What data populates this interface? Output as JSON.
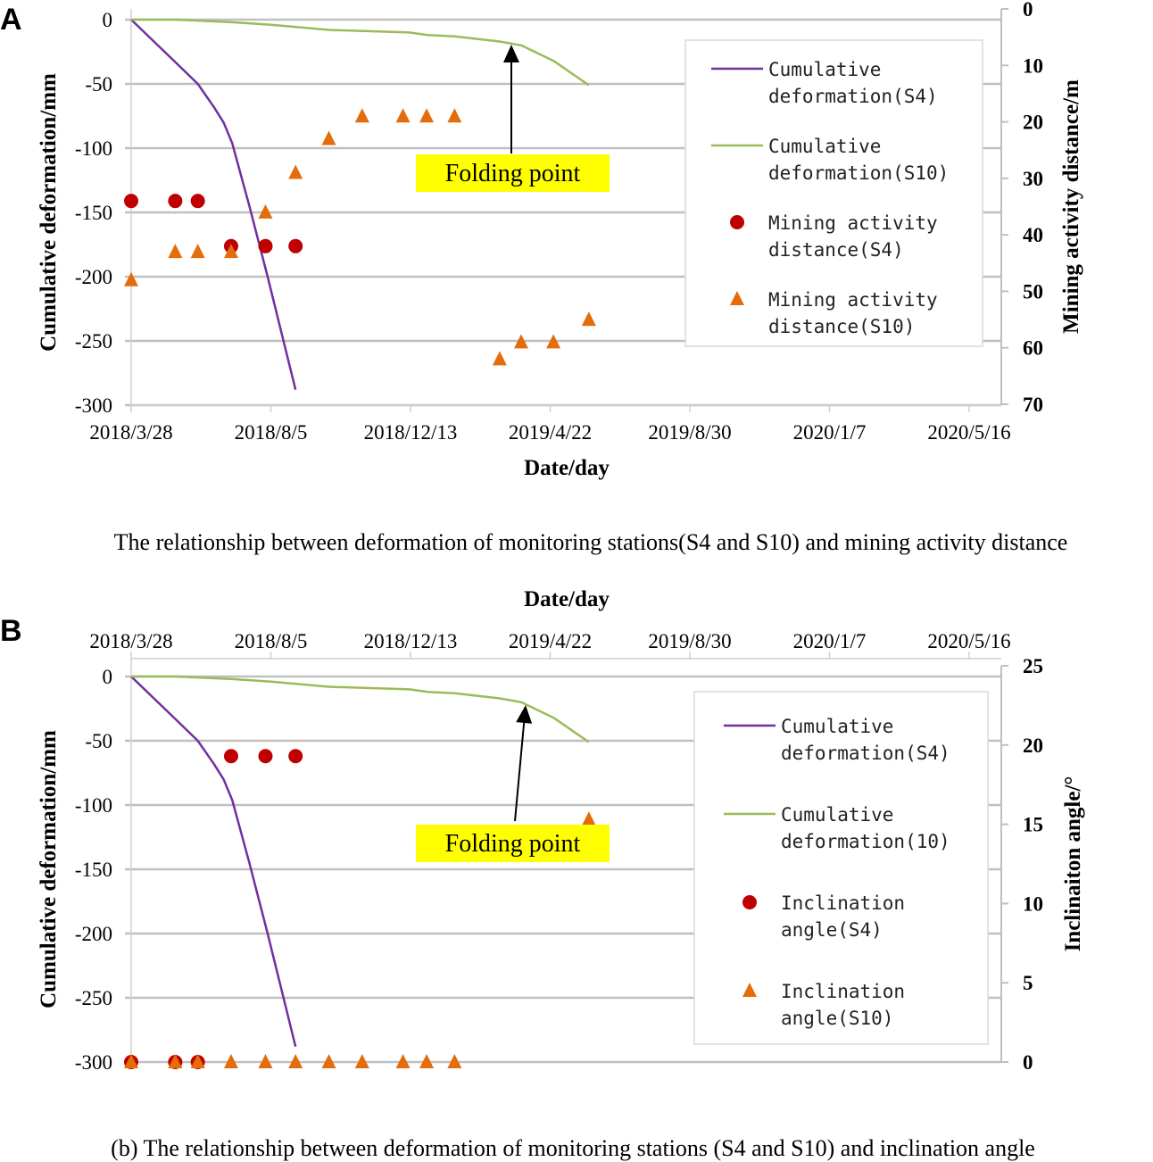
{
  "chart_data": [
    {
      "type": "line+scatter",
      "panel_label": "A",
      "xlabel": "Date/day",
      "ylabel_left": "Cumulative deformation/mm",
      "ylabel_right": "Mining activity distance/m",
      "x_unit": "days since 2018/3/28",
      "x_ticks": [
        {
          "day": 0,
          "label": "2018/3/28"
        },
        {
          "day": 130,
          "label": "2018/8/5"
        },
        {
          "day": 260,
          "label": "2018/12/13"
        },
        {
          "day": 390,
          "label": "2019/4/22"
        },
        {
          "day": 520,
          "label": "2019/8/30"
        },
        {
          "day": 650,
          "label": "2020/1/7"
        },
        {
          "day": 780,
          "label": "2020/5/16"
        }
      ],
      "y_left_ticks": [
        0,
        -50,
        -100,
        -150,
        -200,
        -250,
        -300
      ],
      "y_left_range": [
        -300,
        0
      ],
      "y_right_ticks": [
        0,
        10,
        20,
        30,
        40,
        50,
        60,
        70
      ],
      "y_right_range": [
        0,
        70
      ],
      "y_right_reversed": true,
      "grid": true,
      "legend_placement": "right",
      "annotation": "Folding point",
      "caption": "The relationship between deformation of monitoring stations(S4 and S10) and mining activity distance",
      "series": [
        {
          "name": [
            "Cumulative",
            "deformation(S4)"
          ],
          "kind": "line",
          "axis": "left",
          "color": "#7030a0",
          "points": [
            [
              0,
              0
            ],
            [
              41,
              -33
            ],
            [
              62,
              -50
            ],
            [
              77,
              -68
            ],
            [
              86,
              -80
            ],
            [
              94,
              -96
            ],
            [
              110,
              -145
            ],
            [
              127,
              -200
            ],
            [
              153,
              -288
            ]
          ]
        },
        {
          "name": [
            "Cumulative",
            "deformation(S10)"
          ],
          "kind": "line",
          "axis": "left",
          "color": "#9bbb59",
          "points": [
            [
              0,
              0
            ],
            [
              41,
              0
            ],
            [
              94,
              -2
            ],
            [
              130,
              -4
            ],
            [
              184,
              -8
            ],
            [
              259,
              -10
            ],
            [
              276,
              -12
            ],
            [
              301,
              -13
            ],
            [
              343,
              -17
            ],
            [
              363,
              -20
            ],
            [
              393,
              -32
            ],
            [
              426,
              -51
            ]
          ]
        },
        {
          "name": [
            "Mining activity",
            "distance(S4)"
          ],
          "kind": "circle",
          "axis": "right",
          "color": "#c00000",
          "points": [
            [
              0,
              34
            ],
            [
              41,
              34
            ],
            [
              62,
              34
            ],
            [
              93,
              42
            ],
            [
              125,
              42
            ],
            [
              153,
              42
            ]
          ]
        },
        {
          "name": [
            "Mining activity",
            "distance(S10)"
          ],
          "kind": "triangle",
          "axis": "right",
          "color": "#e46c0a",
          "points": [
            [
              0,
              48
            ],
            [
              41,
              43
            ],
            [
              62,
              43
            ],
            [
              93,
              43
            ],
            [
              125,
              36
            ],
            [
              153,
              29
            ],
            [
              184,
              23
            ],
            [
              215,
              19
            ],
            [
              253,
              19
            ],
            [
              275,
              19
            ],
            [
              301,
              19
            ],
            [
              343,
              62
            ],
            [
              363,
              59
            ],
            [
              393,
              59
            ],
            [
              426,
              55
            ]
          ]
        }
      ]
    },
    {
      "type": "line+scatter",
      "panel_label": "B",
      "xlabel": "Date/day",
      "ylabel_left": "Cumulative deformation/mm",
      "ylabel_right": "Inclinaiton angle/°",
      "x_unit": "days since 2018/3/28",
      "x_ticks": [
        {
          "day": 0,
          "label": "2018/3/28"
        },
        {
          "day": 130,
          "label": "2018/8/5"
        },
        {
          "day": 260,
          "label": "2018/12/13"
        },
        {
          "day": 390,
          "label": "2019/4/22"
        },
        {
          "day": 520,
          "label": "2019/8/30"
        },
        {
          "day": 650,
          "label": "2020/1/7"
        },
        {
          "day": 780,
          "label": "2020/5/16"
        }
      ],
      "y_left_ticks": [
        0,
        -50,
        -100,
        -150,
        -200,
        -250,
        -300
      ],
      "y_left_range": [
        -300,
        0
      ],
      "y_right_ticks": [
        0,
        5,
        10,
        15,
        20,
        25
      ],
      "y_right_range": [
        0,
        25
      ],
      "y_right_reversed": false,
      "grid": true,
      "legend_placement": "right",
      "annotation": "Folding point",
      "caption": "(b) The relationship between deformation of monitoring stations (S4 and S10) and inclination angle",
      "series": [
        {
          "name": [
            "Cumulative",
            "deformation(S4)"
          ],
          "kind": "line",
          "axis": "left",
          "color": "#7030a0",
          "points": [
            [
              0,
              0
            ],
            [
              41,
              -33
            ],
            [
              62,
              -50
            ],
            [
              77,
              -68
            ],
            [
              86,
              -80
            ],
            [
              94,
              -96
            ],
            [
              110,
              -145
            ],
            [
              127,
              -200
            ],
            [
              153,
              -288
            ]
          ]
        },
        {
          "name": [
            "Cumulative",
            "deformation(10)"
          ],
          "kind": "line",
          "axis": "left",
          "color": "#9bbb59",
          "points": [
            [
              0,
              0
            ],
            [
              41,
              0
            ],
            [
              94,
              -2
            ],
            [
              130,
              -4
            ],
            [
              184,
              -8
            ],
            [
              259,
              -10
            ],
            [
              276,
              -12
            ],
            [
              301,
              -13
            ],
            [
              343,
              -17
            ],
            [
              363,
              -20
            ],
            [
              393,
              -32
            ],
            [
              426,
              -51
            ]
          ]
        },
        {
          "name": [
            "Inclination",
            "angle(S4)"
          ],
          "kind": "circle",
          "axis": "right",
          "color": "#c00000",
          "points": [
            [
              0,
              0
            ],
            [
              41,
              0
            ],
            [
              62,
              0
            ],
            [
              93,
              19.3
            ],
            [
              125,
              19.3
            ],
            [
              153,
              19.3
            ]
          ]
        },
        {
          "name": [
            "Inclination",
            "angle(S10)"
          ],
          "kind": "triangle",
          "axis": "right",
          "color": "#e46c0a",
          "points": [
            [
              0,
              0
            ],
            [
              41,
              0
            ],
            [
              62,
              0
            ],
            [
              93,
              0
            ],
            [
              125,
              0
            ],
            [
              153,
              0
            ],
            [
              184,
              0
            ],
            [
              215,
              0
            ],
            [
              253,
              0
            ],
            [
              275,
              0
            ],
            [
              301,
              0
            ],
            [
              426,
              15.3
            ]
          ]
        }
      ]
    }
  ]
}
